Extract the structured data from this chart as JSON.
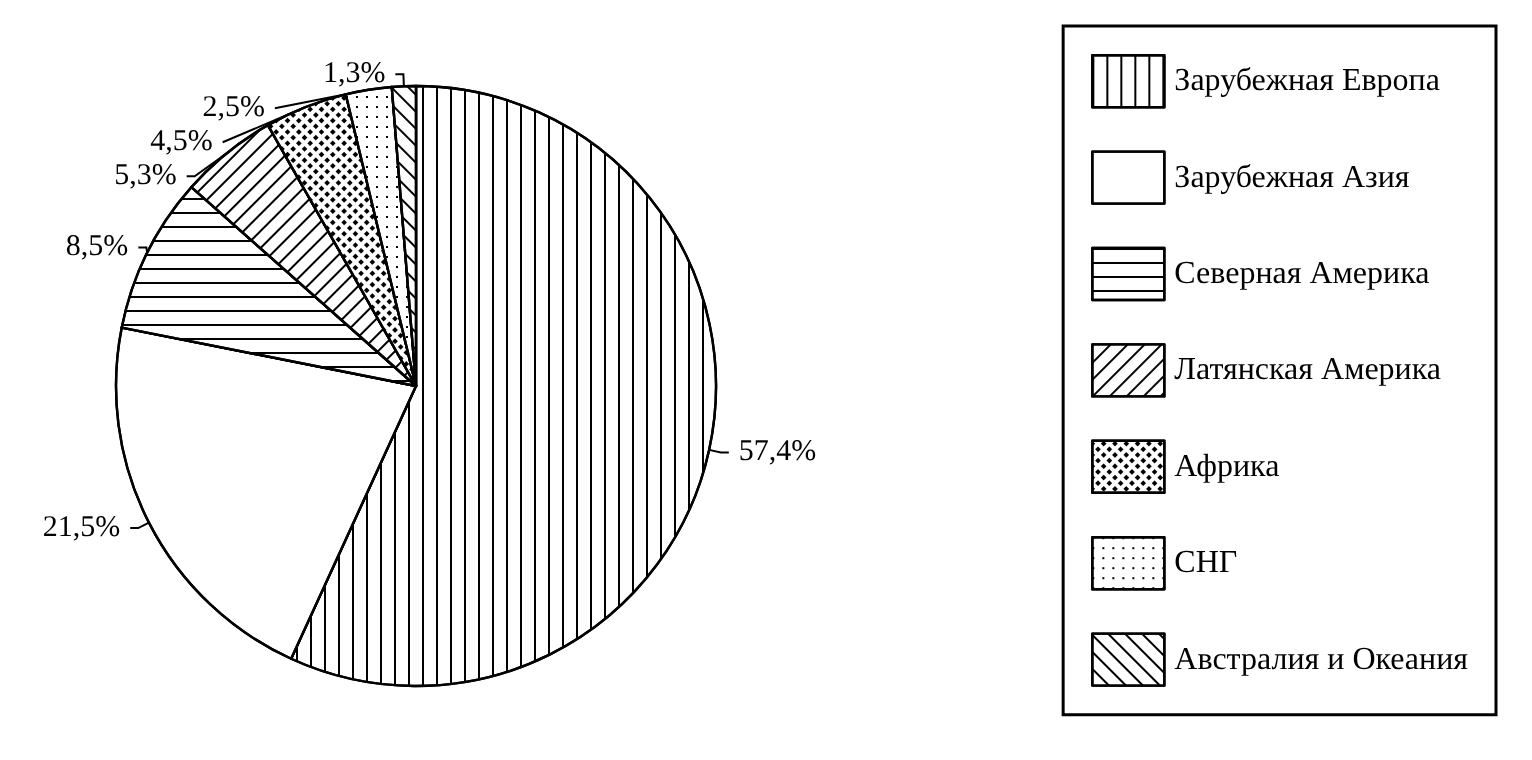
{
  "chart_data": {
    "type": "pie",
    "categories": [
      "Зарубежная Европа",
      "Зарубежная Азия",
      "Северная Америка",
      "Латянская Америка",
      "Африка",
      "СНГ",
      "Австралия и Океания"
    ],
    "values": [
      57.4,
      21.5,
      8.5,
      5.3,
      4.5,
      2.5,
      1.3
    ],
    "value_labels": [
      "57,4%",
      "21,5%",
      "8,5%",
      "5,3%",
      "4,5%",
      "2,5%",
      "1,3%"
    ],
    "colors": [
      "#ffffff",
      "#ffffff",
      "#ffffff",
      "#ffffff",
      "#ffffff",
      "#ffffff",
      "#ffffff"
    ],
    "legend": "right"
  }
}
